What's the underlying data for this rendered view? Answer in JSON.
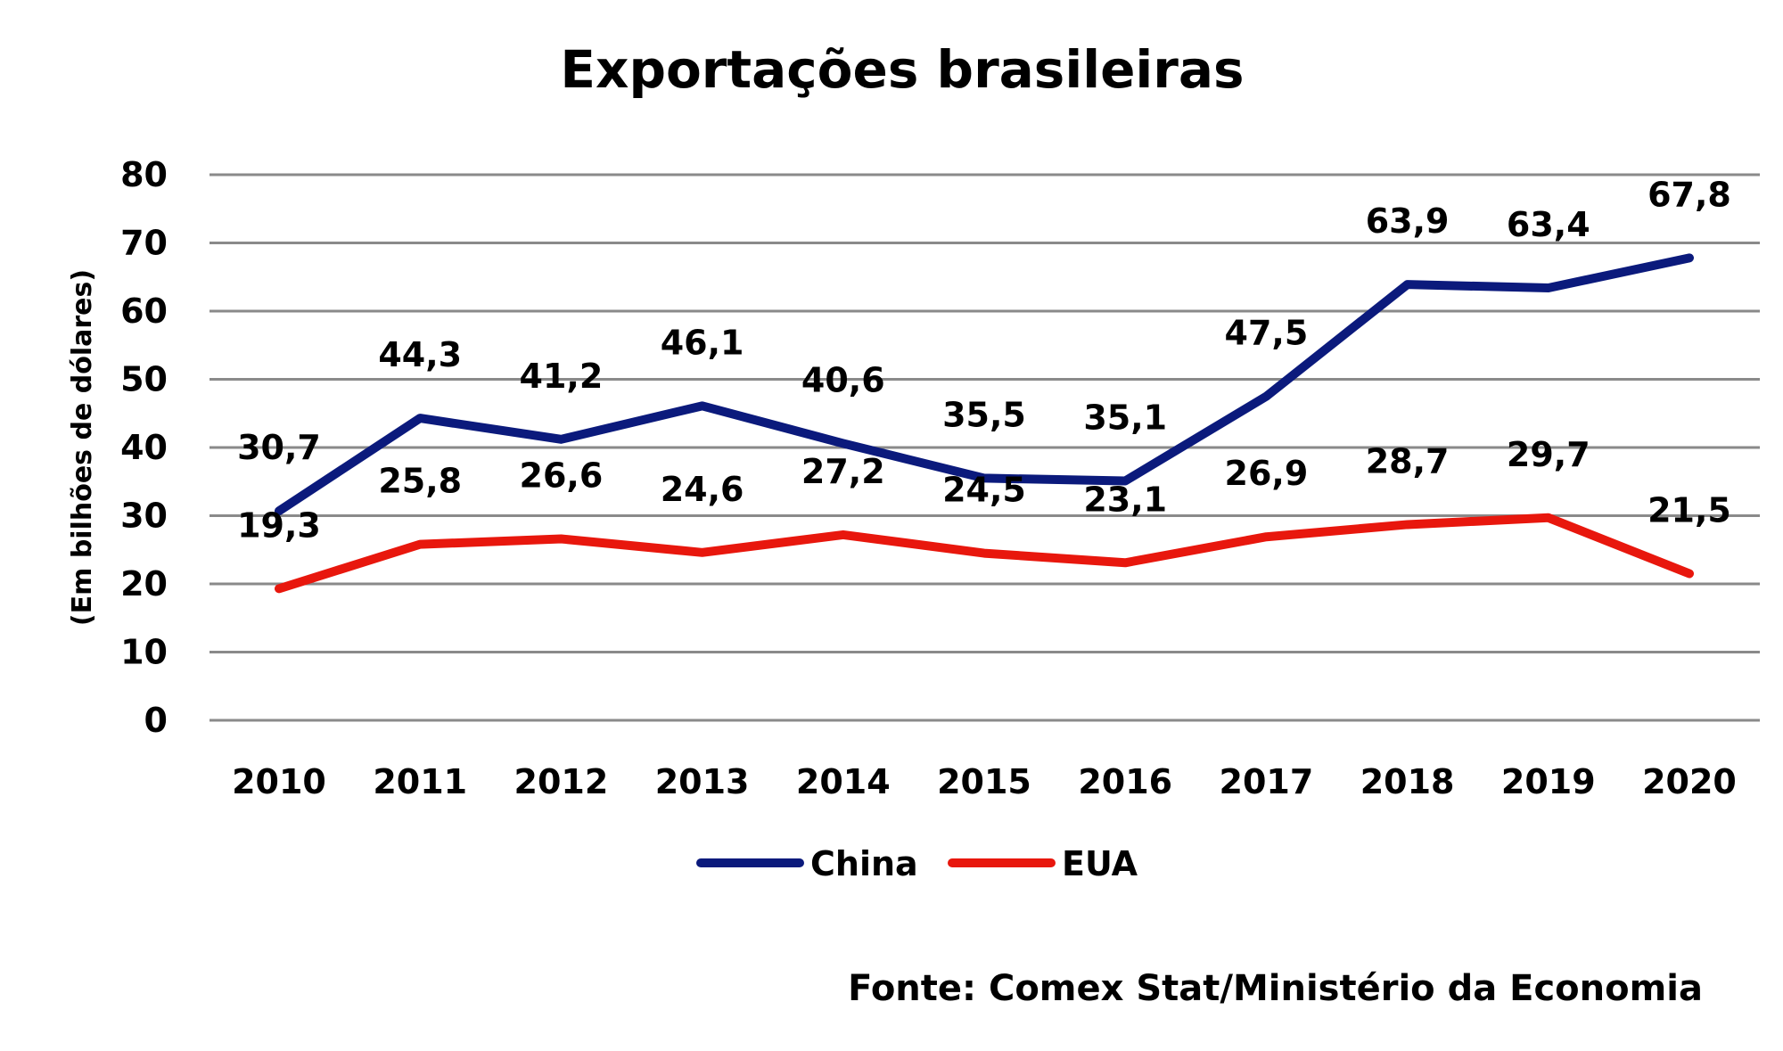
{
  "chart_data": {
    "type": "line",
    "title": "Exportações brasileiras",
    "ylabel": "(Em bilhões de dólares)",
    "xlabel": "",
    "categories": [
      "2010",
      "2011",
      "2012",
      "2013",
      "2014",
      "2015",
      "2016",
      "2017",
      "2018",
      "2019",
      "2020"
    ],
    "ylim": [
      0,
      80
    ],
    "yticks": [
      0,
      10,
      20,
      30,
      40,
      50,
      60,
      70,
      80
    ],
    "grid": true,
    "legend": "bottom",
    "series": [
      {
        "name": "China",
        "color": "#0b1a7c",
        "values": [
          30.7,
          44.3,
          41.2,
          46.1,
          40.6,
          35.5,
          35.1,
          47.5,
          63.9,
          63.4,
          67.8
        ],
        "labels": [
          "30,7",
          "44,3",
          "41,2",
          "46,1",
          "40,6",
          "35,5",
          "35,1",
          "47,5",
          "63,9",
          "63,4",
          "67,8"
        ]
      },
      {
        "name": "EUA",
        "color": "#e8170d",
        "values": [
          19.3,
          25.8,
          26.6,
          24.6,
          27.2,
          24.5,
          23.1,
          26.9,
          28.7,
          29.7,
          21.5
        ],
        "labels": [
          "19,3",
          "25,8",
          "26,6",
          "24,6",
          "27,2",
          "24,5",
          "23,1",
          "26,9",
          "28,7",
          "29,7",
          "21,5"
        ]
      }
    ],
    "source": "Fonte: Comex Stat/Ministério da Economia"
  }
}
